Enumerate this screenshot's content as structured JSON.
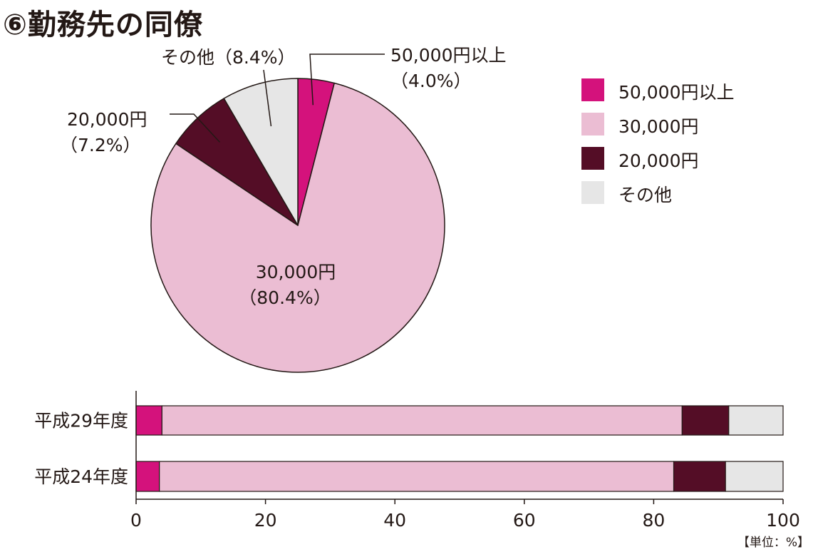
{
  "title": "⑥勤務先の同僚",
  "unit_label": "【単位：%】",
  "chart_data": [
    {
      "type": "pie",
      "title": "",
      "slices": [
        {
          "label": "50,000円以上",
          "value": 4.0,
          "value_label": "（4.0%）",
          "color": "#d4127c"
        },
        {
          "label": "30,000円",
          "value": 80.4,
          "value_label": "（80.4%）",
          "color": "#ebbdd3"
        },
        {
          "label": "20,000円",
          "value": 7.2,
          "value_label": "（7.2%）",
          "color": "#540d26"
        },
        {
          "label": "その他",
          "value": 8.4,
          "value_label": "（8.4%）",
          "color": "#e6e6e6"
        }
      ],
      "legend": {
        "placement": "right",
        "items": [
          "50,000円以上",
          "30,000円",
          "20,000円",
          "その他"
        ]
      }
    },
    {
      "type": "bar",
      "orientation": "horizontal",
      "stacked": true,
      "categories": [
        "平成29年度",
        "平成24年度"
      ],
      "series": [
        {
          "name": "50,000円以上",
          "color": "#d4127c",
          "values": [
            4.0,
            3.6
          ]
        },
        {
          "name": "30,000円",
          "color": "#ebbdd3",
          "values": [
            80.4,
            79.5
          ]
        },
        {
          "name": "20,000円",
          "color": "#540d26",
          "values": [
            7.2,
            8.0
          ]
        },
        {
          "name": "その他",
          "color": "#e6e6e6",
          "values": [
            8.4,
            8.9
          ]
        }
      ],
      "xlim": [
        0,
        100
      ],
      "x_ticks": [
        0,
        20,
        40,
        60,
        80,
        100
      ],
      "grid": false
    }
  ]
}
